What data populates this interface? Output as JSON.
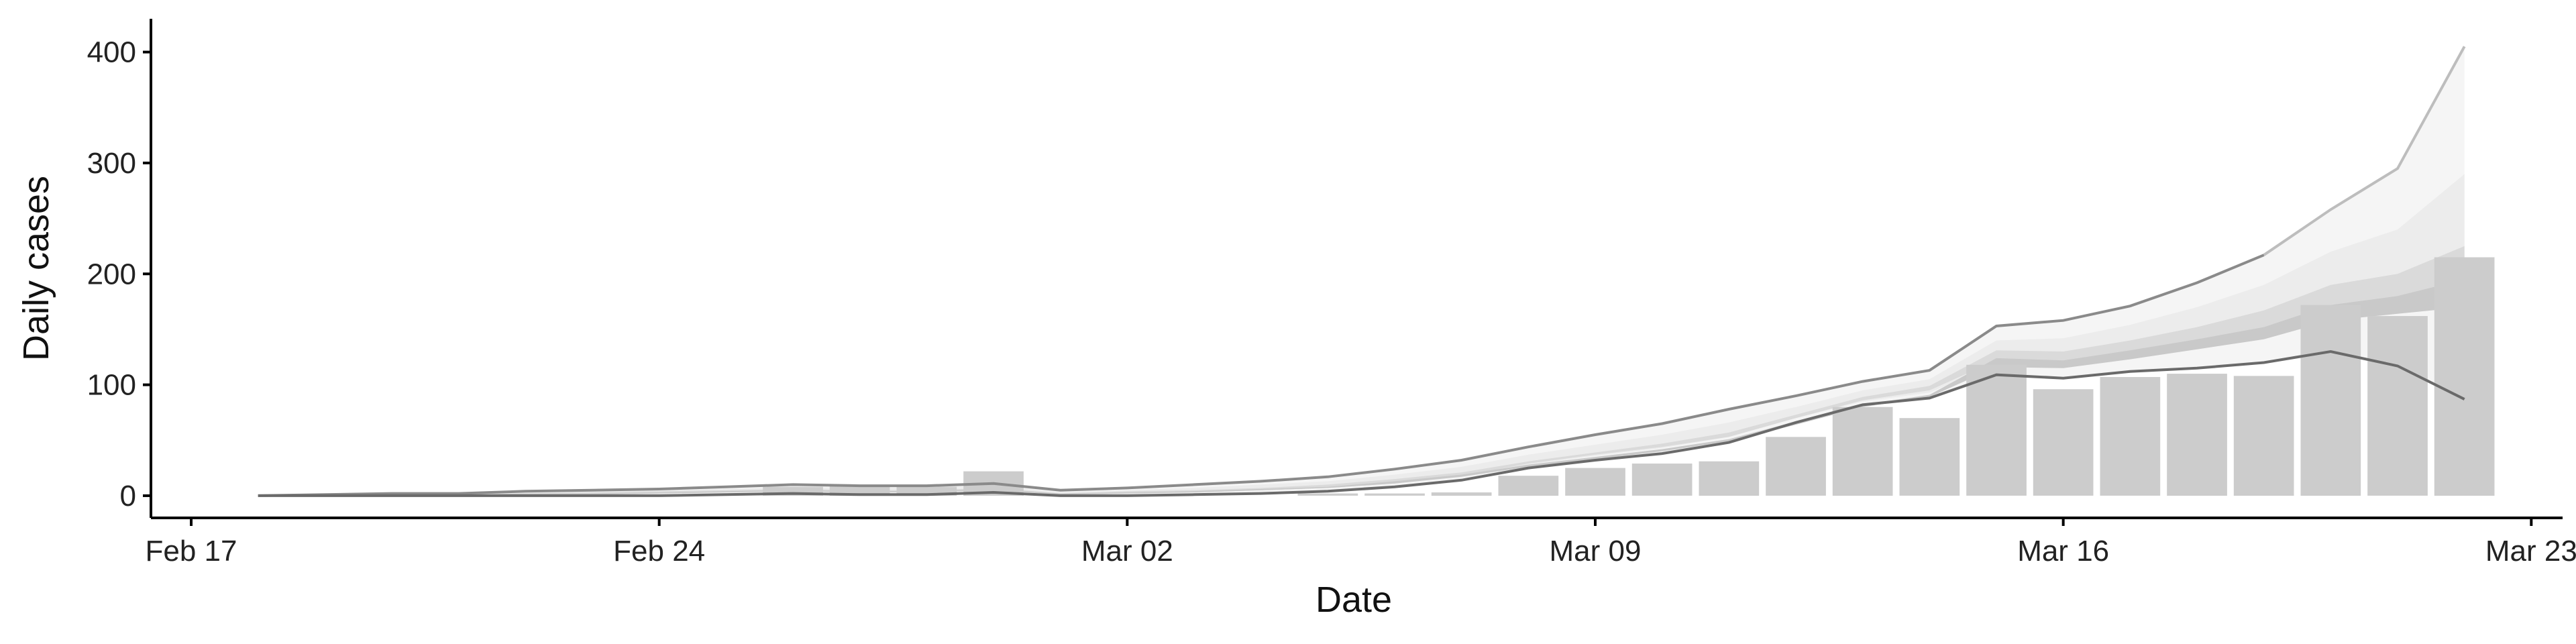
{
  "chart_data": {
    "type": "bar",
    "xlabel": "Date",
    "ylabel": "Daily cases",
    "x_ticks": [
      {
        "date": "2020-02-17",
        "label": "Feb 17"
      },
      {
        "date": "2020-02-24",
        "label": "Feb 24"
      },
      {
        "date": "2020-03-02",
        "label": "Mar 02"
      },
      {
        "date": "2020-03-09",
        "label": "Mar 09"
      },
      {
        "date": "2020-03-16",
        "label": "Mar 16"
      },
      {
        "date": "2020-03-23",
        "label": "Mar 23"
      }
    ],
    "y_ticks": [
      0,
      100,
      200,
      300,
      400
    ],
    "xlim": [
      "2020-02-16",
      "2020-03-23"
    ],
    "ylim": [
      -20,
      430
    ],
    "grid": false,
    "colors": {
      "bars": "#cccccc",
      "band_outer": "#f5f5f5",
      "band_mid": "#ececec",
      "band_inner": "#dadada",
      "band_core": "#c9c9c9",
      "line_outer": "#bdbdbd",
      "line_upper": "#8a8a8a",
      "line_lower": "#6a6a6a"
    },
    "bars": [
      {
        "date": "2020-02-26",
        "value": 8
      },
      {
        "date": "2020-02-27",
        "value": 9
      },
      {
        "date": "2020-02-28",
        "value": 8
      },
      {
        "date": "2020-02-29",
        "value": 22
      },
      {
        "date": "2020-03-05",
        "value": 2
      },
      {
        "date": "2020-03-06",
        "value": 2
      },
      {
        "date": "2020-03-07",
        "value": 3
      },
      {
        "date": "2020-03-08",
        "value": 18
      },
      {
        "date": "2020-03-09",
        "value": 25
      },
      {
        "date": "2020-03-10",
        "value": 29
      },
      {
        "date": "2020-03-11",
        "value": 31
      },
      {
        "date": "2020-03-12",
        "value": 53
      },
      {
        "date": "2020-03-13",
        "value": 80
      },
      {
        "date": "2020-03-14",
        "value": 70
      },
      {
        "date": "2020-03-15",
        "value": 118
      },
      {
        "date": "2020-03-16",
        "value": 96
      },
      {
        "date": "2020-03-17",
        "value": 107
      },
      {
        "date": "2020-03-18",
        "value": 110
      },
      {
        "date": "2020-03-19",
        "value": 108
      },
      {
        "date": "2020-03-20",
        "value": 172
      },
      {
        "date": "2020-03-21",
        "value": 162
      },
      {
        "date": "2020-03-22",
        "value": 215
      }
    ],
    "estimate_bands": {
      "dates": [
        "2020-02-18",
        "2020-02-19",
        "2020-02-20",
        "2020-02-21",
        "2020-02-22",
        "2020-02-23",
        "2020-02-24",
        "2020-02-25",
        "2020-02-26",
        "2020-02-27",
        "2020-02-28",
        "2020-02-29",
        "2020-03-01",
        "2020-03-02",
        "2020-03-03",
        "2020-03-04",
        "2020-03-05",
        "2020-03-06",
        "2020-03-07",
        "2020-03-08",
        "2020-03-09",
        "2020-03-10",
        "2020-03-11",
        "2020-03-12",
        "2020-03-13",
        "2020-03-14",
        "2020-03-15",
        "2020-03-16",
        "2020-03-17",
        "2020-03-18",
        "2020-03-19",
        "2020-03-20",
        "2020-03-21",
        "2020-03-22"
      ],
      "outer_upper": [
        0,
        1,
        2,
        2,
        4,
        5,
        6,
        8,
        10,
        9,
        9,
        11,
        5,
        7,
        10,
        13,
        17,
        24,
        32,
        44,
        55,
        65,
        78,
        90,
        103,
        113,
        153,
        158,
        171,
        192,
        217,
        258,
        295,
        405
      ],
      "outer_lower": [
        0,
        0,
        0,
        0,
        0,
        0,
        0,
        1,
        2,
        1,
        1,
        3,
        0,
        0,
        1,
        2,
        4,
        8,
        14,
        25,
        32,
        38,
        48,
        66,
        82,
        88,
        109,
        106,
        112,
        115,
        120,
        130,
        117,
        87
      ],
      "mid_upper": [
        0,
        1,
        1,
        2,
        3,
        4,
        5,
        6,
        8,
        7,
        7,
        9,
        3,
        5,
        7,
        10,
        13,
        19,
        26,
        37,
        46,
        55,
        66,
        80,
        95,
        105,
        140,
        142,
        154,
        170,
        190,
        220,
        240,
        290
      ],
      "mid_lower": [
        0,
        0,
        0,
        1,
        1,
        1,
        2,
        3,
        4,
        3,
        3,
        5,
        1,
        2,
        3,
        5,
        7,
        11,
        18,
        28,
        36,
        43,
        53,
        70,
        85,
        93,
        118,
        118,
        127,
        134,
        145,
        165,
        170,
        175
      ],
      "inner_upper": [
        0,
        0,
        1,
        1,
        2,
        3,
        4,
        5,
        6,
        5,
        5,
        7,
        2,
        4,
        5,
        7,
        10,
        15,
        21,
        31,
        39,
        47,
        57,
        73,
        89,
        99,
        131,
        130,
        140,
        152,
        167,
        190,
        200,
        225
      ],
      "inner_lower": [
        0,
        0,
        0,
        0,
        1,
        1,
        2,
        3,
        4,
        3,
        3,
        5,
        1,
        2,
        3,
        5,
        7,
        11,
        18,
        29,
        37,
        44,
        53,
        70,
        86,
        95,
        122,
        121,
        129,
        136,
        148,
        168,
        176,
        182
      ],
      "core_upper": [
        0,
        0,
        1,
        1,
        2,
        2,
        3,
        4,
        5,
        4,
        4,
        6,
        2,
        3,
        4,
        6,
        8,
        13,
        19,
        28,
        35,
        42,
        51,
        67,
        82,
        91,
        124,
        122,
        131,
        141,
        152,
        172,
        180,
        195
      ],
      "core_lower": [
        0,
        0,
        0,
        1,
        1,
        1,
        2,
        3,
        4,
        3,
        3,
        5,
        1,
        2,
        3,
        5,
        7,
        11,
        17,
        26,
        33,
        40,
        49,
        64,
        80,
        89,
        116,
        115,
        123,
        132,
        141,
        158,
        164,
        170
      ]
    }
  }
}
